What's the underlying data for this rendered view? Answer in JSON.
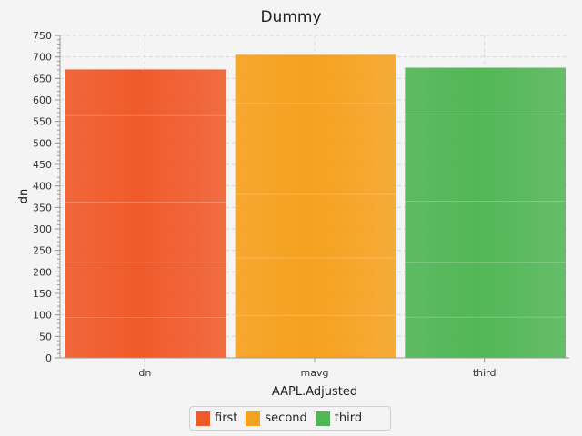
{
  "chart_data": {
    "type": "bar",
    "title": "Dummy",
    "xlabel": "AAPL.Adjusted",
    "ylabel": "dn",
    "categories": [
      "dn",
      "mavg",
      "third"
    ],
    "series": [
      {
        "name": "first",
        "category": "dn",
        "value": 671,
        "color": "#f05a2a"
      },
      {
        "name": "second",
        "category": "mavg",
        "value": 705,
        "color": "#f6a11f"
      },
      {
        "name": "third",
        "category": "third",
        "value": 675,
        "color": "#52b656"
      }
    ],
    "ylim": [
      0,
      750
    ],
    "ytick_step": 50,
    "yticks": [
      "0",
      "50",
      "100",
      "150",
      "200",
      "250",
      "300",
      "350",
      "400",
      "450",
      "500",
      "550",
      "600",
      "650",
      "700",
      "750"
    ],
    "grid": true,
    "legend_position": "bottom-center"
  }
}
